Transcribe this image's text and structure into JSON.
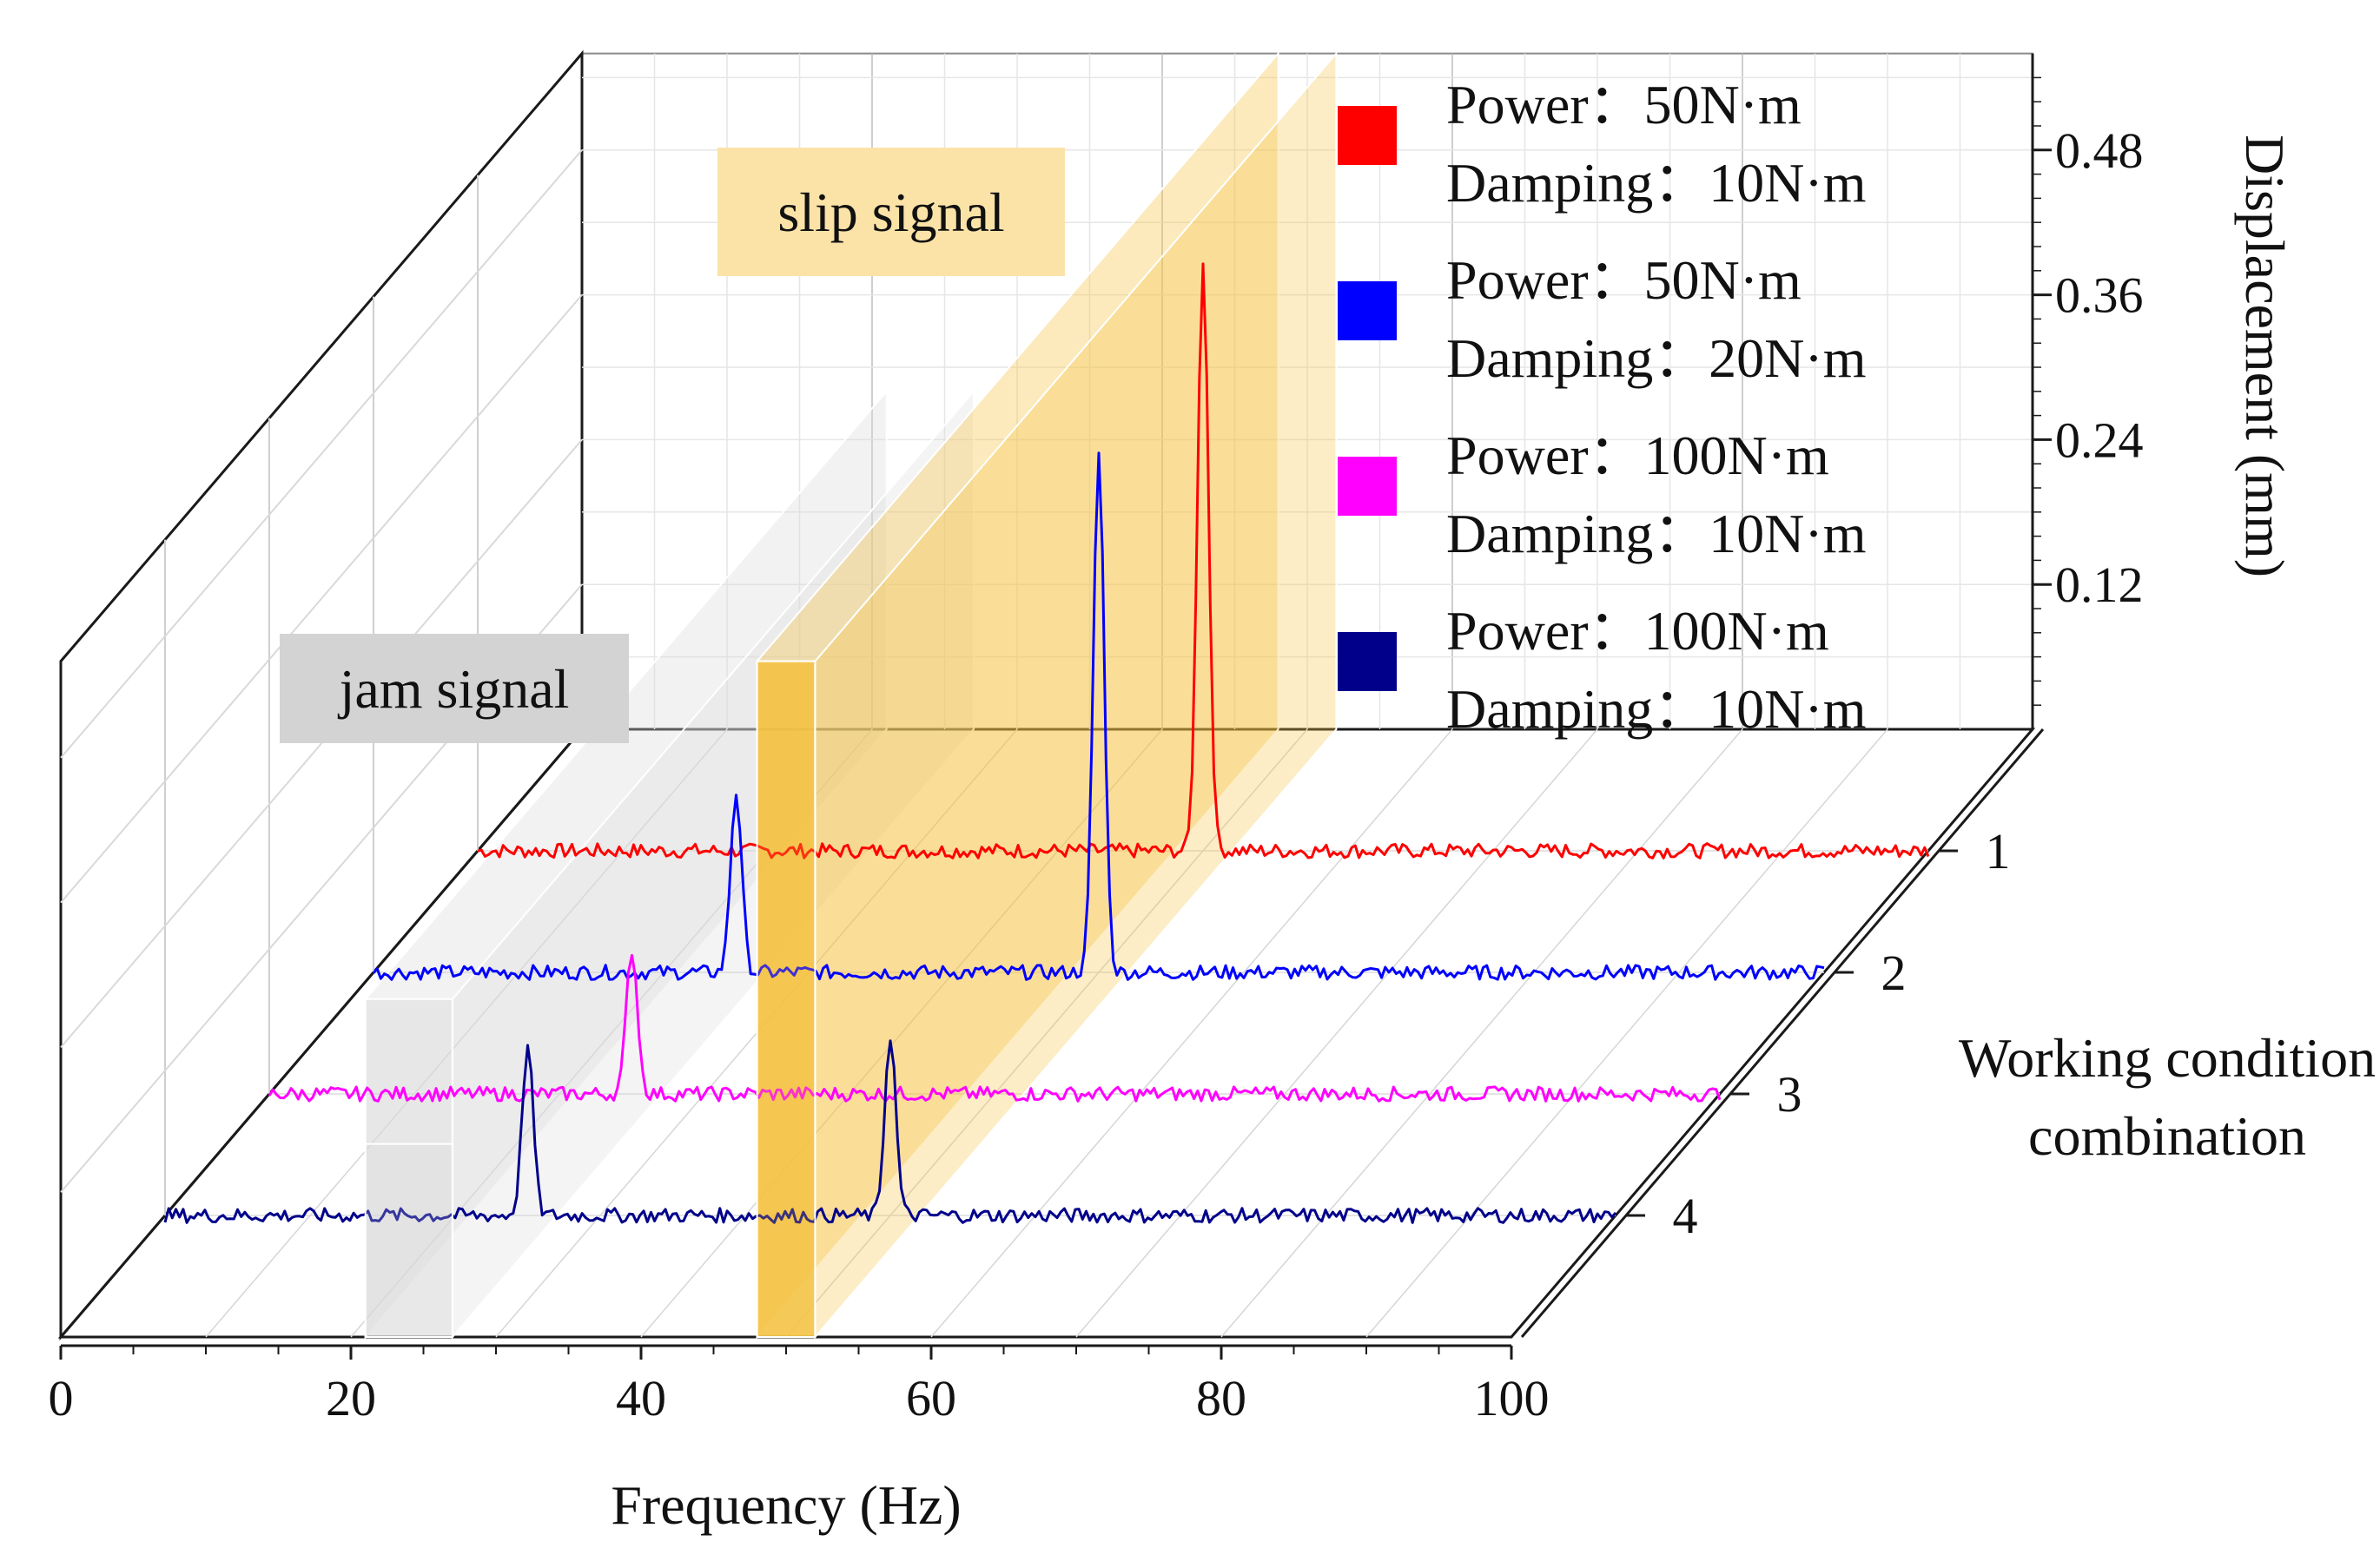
{
  "chart_data": {
    "type": "line",
    "subtype": "3d-waterfall",
    "title": "",
    "xlabel": "Frequency (Hz)",
    "ylabel": "Working condition combination",
    "zlabel": "Displacement (mm)",
    "xlim": [
      0,
      100
    ],
    "zlim": [
      0,
      0.56
    ],
    "x_ticks": [
      "0",
      "20",
      "40",
      "60",
      "80",
      "100"
    ],
    "y_ticks": [
      "1",
      "2",
      "3",
      "4"
    ],
    "z_ticks": [
      "0.12",
      "0.24",
      "0.36",
      "0.48"
    ],
    "noise_level": 0.006,
    "series": [
      {
        "name": "Power：50N·m Damping：10N·m",
        "condition": 1,
        "color": "#ff0000",
        "peaks": [
          {
            "freq": 50,
            "amp": 0.49
          }
        ]
      },
      {
        "name": "Power：50N·m Damping：20N·m",
        "condition": 2,
        "color": "#0000ff",
        "peaks": [
          {
            "freq": 25,
            "amp": 0.15
          },
          {
            "freq": 50,
            "amp": 0.43
          }
        ]
      },
      {
        "name": "Power：100N·m Damping：10N·m",
        "condition": 3,
        "color": "#ff00ff",
        "peaks": [
          {
            "freq": 25,
            "amp": 0.12
          }
        ]
      },
      {
        "name": "Power：100N·m Damping：10N·m",
        "condition": 4,
        "color": "#00008b",
        "peaks": [
          {
            "freq": 25,
            "amp": 0.14
          },
          {
            "freq": 50,
            "amp": 0.15
          }
        ]
      }
    ],
    "legend": [
      {
        "line1": "Power：50N·m",
        "line2": "Damping：10N·m",
        "color": "#ff0000"
      },
      {
        "line1": "Power：50N·m",
        "line2": "Damping：20N·m",
        "color": "#0000ff"
      },
      {
        "line1": "Power：100N·m",
        "line2": "Damping：10N·m",
        "color": "#ff00ff"
      },
      {
        "line1": "Power：100N·m",
        "line2": "Damping：10N·m",
        "color": "#00008b"
      }
    ],
    "legend_position": "top-right",
    "annotations": [
      {
        "label": "jam signal",
        "freq_range": [
          21,
          27
        ],
        "color": "#d9d9d9"
      },
      {
        "label": "slip signal",
        "freq_range": [
          48,
          52
        ],
        "color": "#f5c242"
      }
    ]
  }
}
